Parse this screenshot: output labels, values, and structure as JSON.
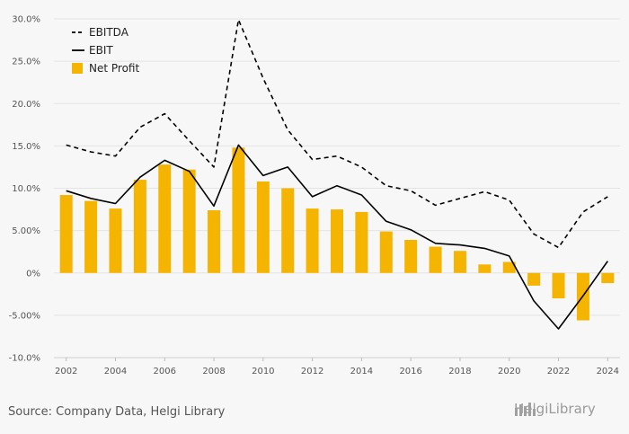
{
  "chart_data": {
    "type": "bar",
    "x": [
      2002,
      2003,
      2004,
      2005,
      2006,
      2007,
      2008,
      2009,
      2010,
      2011,
      2012,
      2013,
      2014,
      2015,
      2016,
      2017,
      2018,
      2019,
      2020,
      2021,
      2022,
      2023,
      2024
    ],
    "x_tick_labels": [
      "2002",
      "2004",
      "2006",
      "2008",
      "2010",
      "2012",
      "2014",
      "2016",
      "2018",
      "2020",
      "2022",
      "2024"
    ],
    "y_tick_labels": [
      "30.0%",
      "25.0%",
      "20.0%",
      "15.0%",
      "10.0%",
      "5.00%",
      "0%",
      "-5.00%",
      "-10.0%"
    ],
    "ylim": [
      -10,
      30
    ],
    "grid": "horizontal",
    "legend_position": "top-left",
    "series": [
      {
        "name": "EBITDA",
        "type": "line",
        "style": "dashed",
        "color": "#000000",
        "values": [
          15.1,
          14.3,
          13.8,
          17.2,
          18.8,
          15.6,
          12.5,
          29.9,
          23.0,
          16.9,
          13.4,
          13.8,
          12.5,
          10.3,
          9.7,
          8.0,
          8.8,
          9.6,
          8.6,
          4.6,
          3.0,
          7.2,
          9.0
        ]
      },
      {
        "name": "EBIT",
        "type": "line",
        "style": "solid",
        "color": "#000000",
        "values": [
          9.7,
          8.8,
          8.2,
          11.3,
          13.3,
          12.0,
          7.9,
          15.1,
          11.5,
          12.5,
          9.0,
          10.3,
          9.2,
          6.1,
          5.1,
          3.5,
          3.3,
          2.9,
          2.0,
          -3.3,
          -6.6,
          -2.7,
          1.4
        ]
      },
      {
        "name": "Net Profit",
        "type": "bar",
        "color": "#f5b400",
        "values": [
          9.2,
          8.5,
          7.6,
          11.0,
          12.8,
          12.2,
          7.4,
          14.8,
          10.8,
          10.0,
          7.6,
          7.5,
          7.2,
          4.9,
          3.9,
          3.1,
          2.6,
          1.0,
          1.3,
          -1.5,
          -3.0,
          -5.6,
          -1.2
        ]
      }
    ]
  },
  "footer": {
    "source": "Source: Company Data, Helgi Library",
    "brand": "HelgiLibrary"
  },
  "colors": {
    "bar": "#f5b400",
    "line": "#000000",
    "grid": "#e3e3e3",
    "background": "#f7f7f7"
  },
  "icons": {
    "brand_logo": "helgi-library-logo-icon"
  }
}
